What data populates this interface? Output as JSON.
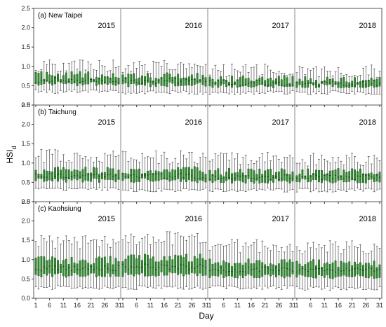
{
  "chart_data": {
    "type": "boxplot",
    "xlabel": "Day",
    "ylabel": {
      "main": "HSI",
      "sub": "d"
    },
    "x_ticks": [
      "1",
      "6",
      "11",
      "16",
      "21",
      "26",
      "31"
    ],
    "ylim": [
      0.0,
      2.5
    ],
    "y_ticks": [
      "0.0",
      "0.5",
      "1.0",
      "1.5",
      "2.0",
      "2.5"
    ],
    "years": [
      "2015",
      "2016",
      "2017",
      "2018"
    ],
    "days_per_year": 31,
    "box_color": "#2e8b2e",
    "box_edge_color": "#1a4d1a",
    "whisker_color": "#333333",
    "panels": [
      {
        "title": "(a) New Taipei",
        "year_label_row": 0,
        "stats_by_year": [
          {
            "median": 0.64,
            "q1": 0.55,
            "q3": 0.76,
            "whisker_low": 0.35,
            "whisker_high": 1.0
          },
          {
            "median": 0.62,
            "q1": 0.53,
            "q3": 0.73,
            "whisker_low": 0.33,
            "whisker_high": 0.98
          },
          {
            "median": 0.57,
            "q1": 0.5,
            "q3": 0.66,
            "whisker_low": 0.32,
            "whisker_high": 0.9
          },
          {
            "median": 0.56,
            "q1": 0.5,
            "q3": 0.64,
            "whisker_low": 0.32,
            "whisker_high": 0.88
          }
        ]
      },
      {
        "title": "(b) Taichung",
        "year_label_row": 0,
        "stats_by_year": [
          {
            "median": 0.66,
            "q1": 0.55,
            "q3": 0.8,
            "whisker_low": 0.32,
            "whisker_high": 1.18
          },
          {
            "median": 0.66,
            "q1": 0.55,
            "q3": 0.8,
            "whisker_low": 0.3,
            "whisker_high": 1.15
          },
          {
            "median": 0.63,
            "q1": 0.53,
            "q3": 0.76,
            "whisker_low": 0.3,
            "whisker_high": 1.1
          },
          {
            "median": 0.63,
            "q1": 0.53,
            "q3": 0.76,
            "whisker_low": 0.3,
            "whisker_high": 1.08
          }
        ]
      },
      {
        "title": "(c) Kaohsiung",
        "year_label_row": 0,
        "stats_by_year": [
          {
            "median": 0.78,
            "q1": 0.6,
            "q3": 0.98,
            "whisker_low": 0.28,
            "whisker_high": 1.45
          },
          {
            "median": 0.82,
            "q1": 0.62,
            "q3": 1.05,
            "whisker_low": 0.28,
            "whisker_high": 1.55
          },
          {
            "median": 0.74,
            "q1": 0.58,
            "q3": 0.92,
            "whisker_low": 0.28,
            "whisker_high": 1.35
          },
          {
            "median": 0.72,
            "q1": 0.56,
            "q3": 0.9,
            "whisker_low": 0.26,
            "whisker_high": 1.32
          }
        ]
      }
    ]
  }
}
